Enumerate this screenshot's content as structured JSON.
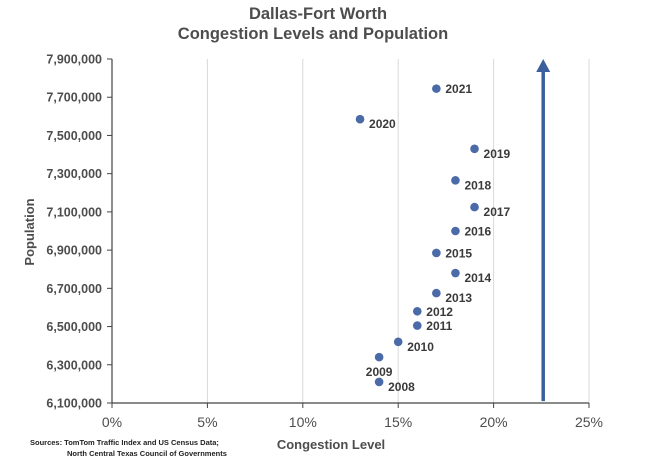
{
  "chart_data": {
    "type": "scatter",
    "title": [
      "Dallas-Fort Worth",
      "Congestion Levels and Population"
    ],
    "xlabel": "Congestion Level",
    "ylabel": "Population",
    "xlim": [
      0,
      25
    ],
    "ylim": [
      6100000,
      7900000
    ],
    "x_ticks": [
      0,
      5,
      10,
      15,
      20,
      25
    ],
    "x_tick_labels": [
      "0%",
      "5%",
      "10%",
      "15%",
      "20%",
      "25%"
    ],
    "y_ticks": [
      6100000,
      6300000,
      6500000,
      6700000,
      6900000,
      7100000,
      7300000,
      7500000,
      7700000,
      7900000
    ],
    "y_tick_labels": [
      "6,100,000",
      "6,300,000",
      "6,500,000",
      "6,700,000",
      "6,900,000",
      "7,100,000",
      "7,300,000",
      "7,500,000",
      "7,700,000",
      "7,900,000"
    ],
    "grid": "vertical",
    "point_color": "#4a6aa8",
    "arrow_color": "#3b5f9c",
    "arrow": {
      "x": 22.6,
      "y_from": 6110000,
      "y_to": 7900000
    },
    "points": [
      {
        "label": "2008",
        "x": 14,
        "y": 6210000,
        "label_pos": "right-below"
      },
      {
        "label": "2009",
        "x": 14,
        "y": 6340000,
        "label_pos": "below"
      },
      {
        "label": "2010",
        "x": 15,
        "y": 6420000,
        "label_pos": "right-below"
      },
      {
        "label": "2011",
        "x": 16,
        "y": 6505000,
        "label_pos": "right"
      },
      {
        "label": "2012",
        "x": 16,
        "y": 6580000,
        "label_pos": "right"
      },
      {
        "label": "2013",
        "x": 17,
        "y": 6675000,
        "label_pos": "right-below"
      },
      {
        "label": "2014",
        "x": 18,
        "y": 6780000,
        "label_pos": "right-below"
      },
      {
        "label": "2015",
        "x": 17,
        "y": 6885000,
        "label_pos": "right"
      },
      {
        "label": "2016",
        "x": 18,
        "y": 7000000,
        "label_pos": "right"
      },
      {
        "label": "2017",
        "x": 19,
        "y": 7125000,
        "label_pos": "right-below"
      },
      {
        "label": "2018",
        "x": 18,
        "y": 7265000,
        "label_pos": "right-below"
      },
      {
        "label": "2019",
        "x": 19,
        "y": 7430000,
        "label_pos": "right-below"
      },
      {
        "label": "2020",
        "x": 13,
        "y": 7585000,
        "label_pos": "right-below"
      },
      {
        "label": "2021",
        "x": 17,
        "y": 7745000,
        "label_pos": "right"
      }
    ],
    "source": [
      "Sources:  TomTom Traffic Index and US Census Data;",
      "North Central Texas Council of Governments"
    ]
  }
}
